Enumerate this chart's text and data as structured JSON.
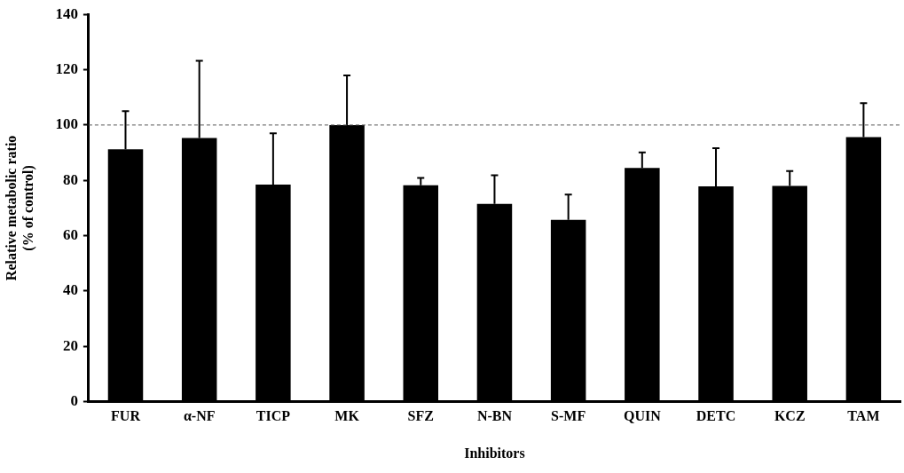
{
  "chart_data": {
    "type": "bar",
    "xlabel": "Inhibitors",
    "ylabel": "Relative metabolic ratio\n(% of control)",
    "categories": [
      "FUR",
      "α-NF",
      "TICP",
      "MK",
      "SFZ",
      "N-BN",
      "S-MF",
      "QUIN",
      "DETC",
      "KCZ",
      "TAM"
    ],
    "values": [
      91.2,
      95.3,
      78.5,
      100,
      78.2,
      71.5,
      65.7,
      84.5,
      77.8,
      78.0,
      95.6
    ],
    "errors": [
      [
        91.2,
        105
      ],
      [
        95.3,
        123.2
      ],
      [
        78.5,
        97
      ],
      [
        100,
        117.9
      ],
      [
        78.2,
        80.9
      ],
      [
        71.5,
        81.8
      ],
      [
        65.7,
        74.9
      ],
      [
        84.5,
        90.1
      ],
      [
        77.8,
        91.6
      ],
      [
        78.0,
        83.4
      ],
      [
        95.6,
        107.9
      ]
    ],
    "color": "#000000",
    "ylim": [
      0,
      140
    ],
    "yticks": [
      0,
      20,
      40,
      60,
      80,
      100,
      120,
      140
    ],
    "ref_lines": [
      {
        "axis": "y",
        "value": 100,
        "line_style": "dashed",
        "color": "#555555"
      }
    ],
    "grid": false,
    "legend": false
  }
}
